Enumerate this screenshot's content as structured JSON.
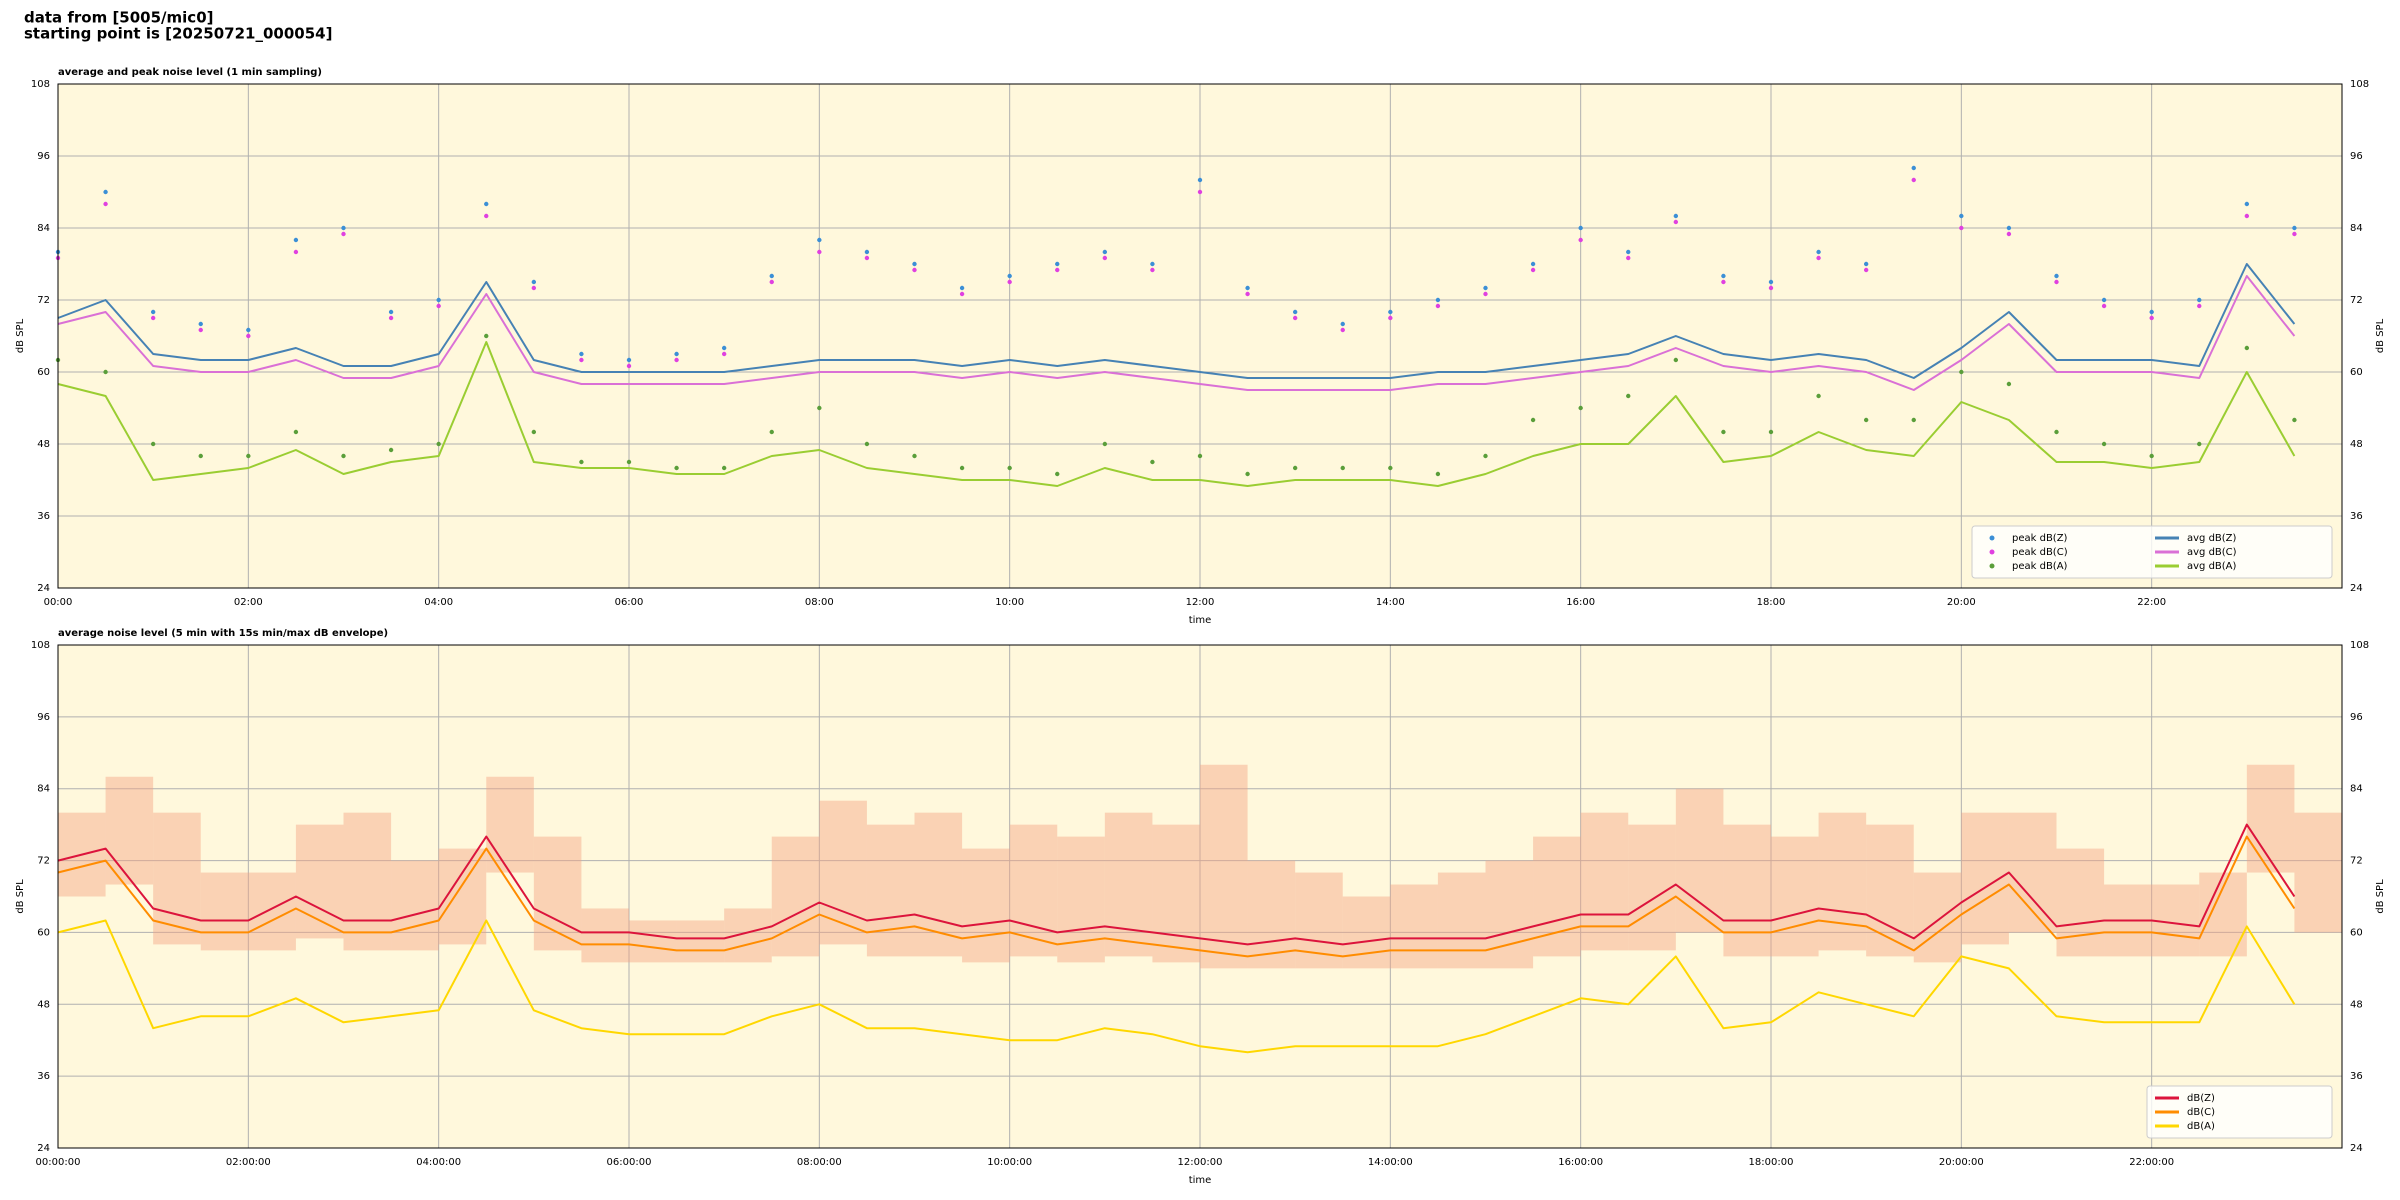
{
  "suptitle": [
    "data from [5005/mic0]",
    "starting point is [20250721_000054]"
  ],
  "chart_data": [
    {
      "type": "line",
      "title": "average and peak noise level (1 min sampling)",
      "xlabel": "time",
      "ylabel": "dB SPL",
      "y2label": "dB SPL",
      "x": [
        0,
        0.5,
        1,
        1.5,
        2,
        2.5,
        3,
        3.5,
        4,
        4.5,
        5,
        5.5,
        6,
        6.5,
        7,
        7.5,
        8,
        8.5,
        9,
        9.5,
        10,
        10.5,
        11,
        11.5,
        12,
        12.5,
        13,
        13.5,
        14,
        14.5,
        15,
        15.5,
        16,
        16.5,
        17,
        17.5,
        18,
        18.5,
        19,
        19.5,
        20,
        20.5,
        21,
        21.5,
        22,
        22.5,
        23,
        23.5
      ],
      "xlim": [
        0,
        24
      ],
      "xticks": [
        {
          "value": 0,
          "label": "00:00"
        },
        {
          "value": 2,
          "label": "02:00"
        },
        {
          "value": 4,
          "label": "04:00"
        },
        {
          "value": 6,
          "label": "06:00"
        },
        {
          "value": 8,
          "label": "08:00"
        },
        {
          "value": 10,
          "label": "10:00"
        },
        {
          "value": 12,
          "label": "12:00"
        },
        {
          "value": 14,
          "label": "14:00"
        },
        {
          "value": 16,
          "label": "16:00"
        },
        {
          "value": 18,
          "label": "18:00"
        },
        {
          "value": 20,
          "label": "20:00"
        },
        {
          "value": 22,
          "label": "22:00"
        }
      ],
      "ylim": [
        24,
        108
      ],
      "yticks": [
        24,
        36,
        48,
        60,
        72,
        84,
        96,
        108
      ],
      "grid": true,
      "legend": "lower right",
      "legend_columns": 2,
      "series": [
        {
          "name": "peak dB(Z)",
          "type": "scatter",
          "color": "#3b8fd6",
          "values": [
            80,
            90,
            70,
            68,
            67,
            82,
            84,
            70,
            72,
            88,
            75,
            63,
            62,
            63,
            64,
            76,
            82,
            80,
            78,
            74,
            76,
            78,
            80,
            78,
            92,
            74,
            70,
            68,
            70,
            72,
            74,
            78,
            84,
            80,
            86,
            76,
            75,
            80,
            78,
            94,
            86,
            84,
            76,
            72,
            70,
            72,
            88,
            84
          ]
        },
        {
          "name": "peak dB(C)",
          "type": "scatter",
          "color": "#e040e0",
          "values": [
            79,
            88,
            69,
            67,
            66,
            80,
            83,
            69,
            71,
            86,
            74,
            62,
            61,
            62,
            63,
            75,
            80,
            79,
            77,
            73,
            75,
            77,
            79,
            77,
            90,
            73,
            69,
            67,
            69,
            71,
            73,
            77,
            82,
            79,
            85,
            75,
            74,
            79,
            77,
            92,
            84,
            83,
            75,
            71,
            69,
            71,
            86,
            83
          ]
        },
        {
          "name": "peak dB(A)",
          "type": "scatter",
          "color": "#5a9e3a",
          "values": [
            62,
            60,
            48,
            46,
            46,
            50,
            46,
            47,
            48,
            66,
            50,
            45,
            45,
            44,
            44,
            50,
            54,
            48,
            46,
            44,
            44,
            43,
            48,
            45,
            46,
            43,
            44,
            44,
            44,
            43,
            46,
            52,
            54,
            56,
            62,
            50,
            50,
            56,
            52,
            52,
            60,
            58,
            50,
            48,
            46,
            48,
            64,
            52
          ]
        },
        {
          "name": "avg dB(Z)",
          "type": "line",
          "color": "#4682b4",
          "values": [
            69,
            72,
            63,
            62,
            62,
            64,
            61,
            61,
            63,
            75,
            62,
            60,
            60,
            60,
            60,
            61,
            62,
            62,
            62,
            61,
            62,
            61,
            62,
            61,
            60,
            59,
            59,
            59,
            59,
            60,
            60,
            61,
            62,
            63,
            66,
            63,
            62,
            63,
            62,
            59,
            64,
            70,
            62,
            62,
            62,
            61,
            78,
            68
          ]
        },
        {
          "name": "avg dB(C)",
          "type": "line",
          "color": "#da70d6",
          "values": [
            68,
            70,
            61,
            60,
            60,
            62,
            59,
            59,
            61,
            73,
            60,
            58,
            58,
            58,
            58,
            59,
            60,
            60,
            60,
            59,
            60,
            59,
            60,
            59,
            58,
            57,
            57,
            57,
            57,
            58,
            58,
            59,
            60,
            61,
            64,
            61,
            60,
            61,
            60,
            57,
            62,
            68,
            60,
            60,
            60,
            59,
            76,
            66
          ]
        },
        {
          "name": "avg dB(A)",
          "type": "line",
          "color": "#9acd32",
          "values": [
            58,
            56,
            42,
            43,
            44,
            47,
            43,
            45,
            46,
            65,
            45,
            44,
            44,
            43,
            43,
            46,
            47,
            44,
            43,
            42,
            42,
            41,
            44,
            42,
            42,
            41,
            42,
            42,
            42,
            41,
            43,
            46,
            48,
            48,
            56,
            45,
            46,
            50,
            47,
            46,
            55,
            52,
            45,
            45,
            44,
            45,
            60,
            46
          ]
        }
      ]
    },
    {
      "type": "line",
      "title": "average noise level (5 min with 15s min/max dB envelope)",
      "xlabel": "time",
      "ylabel": "dB SPL",
      "y2label": "dB SPL",
      "x": [
        0,
        0.5,
        1,
        1.5,
        2,
        2.5,
        3,
        3.5,
        4,
        4.5,
        5,
        5.5,
        6,
        6.5,
        7,
        7.5,
        8,
        8.5,
        9,
        9.5,
        10,
        10.5,
        11,
        11.5,
        12,
        12.5,
        13,
        13.5,
        14,
        14.5,
        15,
        15.5,
        16,
        16.5,
        17,
        17.5,
        18,
        18.5,
        19,
        19.5,
        20,
        20.5,
        21,
        21.5,
        22,
        22.5,
        23,
        23.5
      ],
      "xlim": [
        0,
        24
      ],
      "xticks": [
        {
          "value": 0,
          "label": "00:00:00"
        },
        {
          "value": 2,
          "label": "02:00:00"
        },
        {
          "value": 4,
          "label": "04:00:00"
        },
        {
          "value": 6,
          "label": "06:00:00"
        },
        {
          "value": 8,
          "label": "08:00:00"
        },
        {
          "value": 10,
          "label": "10:00:00"
        },
        {
          "value": 12,
          "label": "12:00:00"
        },
        {
          "value": 14,
          "label": "14:00:00"
        },
        {
          "value": 16,
          "label": "16:00:00"
        },
        {
          "value": 18,
          "label": "18:00:00"
        },
        {
          "value": 20,
          "label": "20:00:00"
        },
        {
          "value": 22,
          "label": "22:00:00"
        }
      ],
      "ylim": [
        24,
        108
      ],
      "yticks": [
        24,
        36,
        48,
        60,
        72,
        84,
        96,
        108
      ],
      "grid": true,
      "legend": "lower right",
      "legend_columns": 1,
      "envelope_color": "#f4a582",
      "envelope_max": [
        80,
        86,
        80,
        70,
        70,
        78,
        80,
        72,
        74,
        86,
        76,
        64,
        62,
        62,
        64,
        76,
        82,
        78,
        80,
        74,
        78,
        76,
        80,
        78,
        88,
        72,
        70,
        66,
        68,
        70,
        72,
        76,
        80,
        78,
        84,
        78,
        76,
        80,
        78,
        70,
        80,
        80,
        74,
        68,
        68,
        70,
        88,
        80
      ],
      "envelope_min": [
        66,
        68,
        58,
        57,
        57,
        59,
        57,
        57,
        58,
        70,
        57,
        55,
        55,
        55,
        55,
        56,
        58,
        56,
        56,
        55,
        56,
        55,
        56,
        55,
        54,
        54,
        54,
        54,
        54,
        54,
        54,
        56,
        57,
        57,
        60,
        56,
        56,
        57,
        56,
        55,
        58,
        60,
        56,
        56,
        56,
        56,
        70,
        60
      ],
      "series": [
        {
          "name": "dB(Z)",
          "type": "line",
          "color": "#dc143c",
          "values": [
            72,
            74,
            64,
            62,
            62,
            66,
            62,
            62,
            64,
            76,
            64,
            60,
            60,
            59,
            59,
            61,
            65,
            62,
            63,
            61,
            62,
            60,
            61,
            60,
            59,
            58,
            59,
            58,
            59,
            59,
            59,
            61,
            63,
            63,
            68,
            62,
            62,
            64,
            63,
            59,
            65,
            70,
            61,
            62,
            62,
            61,
            78,
            66
          ]
        },
        {
          "name": "dB(C)",
          "type": "line",
          "color": "#ff8c00",
          "values": [
            70,
            72,
            62,
            60,
            60,
            64,
            60,
            60,
            62,
            74,
            62,
            58,
            58,
            57,
            57,
            59,
            63,
            60,
            61,
            59,
            60,
            58,
            59,
            58,
            57,
            56,
            57,
            56,
            57,
            57,
            57,
            59,
            61,
            61,
            66,
            60,
            60,
            62,
            61,
            57,
            63,
            68,
            59,
            60,
            60,
            59,
            76,
            64
          ]
        },
        {
          "name": "dB(A)",
          "type": "line",
          "color": "#ffd700",
          "values": [
            60,
            62,
            44,
            46,
            46,
            49,
            45,
            46,
            47,
            62,
            47,
            44,
            43,
            43,
            43,
            46,
            48,
            44,
            44,
            43,
            42,
            42,
            44,
            43,
            41,
            40,
            41,
            41,
            41,
            41,
            43,
            46,
            49,
            48,
            56,
            44,
            45,
            50,
            48,
            46,
            56,
            54,
            46,
            45,
            45,
            45,
            61,
            48
          ]
        }
      ]
    }
  ]
}
